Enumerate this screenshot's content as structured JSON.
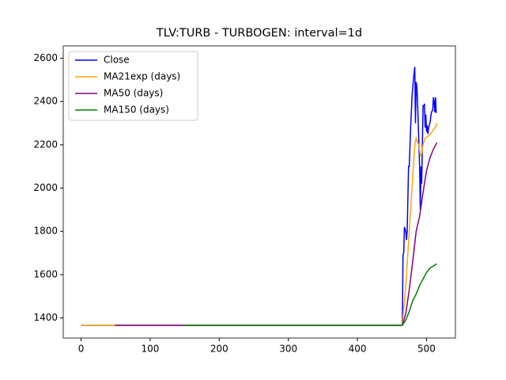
{
  "chart_data": {
    "type": "line",
    "title": "TLV:TURB - TURBOGEN: interval=1d",
    "xlim": [
      -25.8,
      541.8
    ],
    "ylim": [
      1307,
      2657
    ],
    "xticks": [
      0,
      100,
      200,
      300,
      400,
      500
    ],
    "yticks": [
      1400,
      1600,
      1800,
      2000,
      2200,
      2400,
      2600
    ],
    "grid": false,
    "legend": "upper-left",
    "series": [
      {
        "name": "Close",
        "color": "#0000ff",
        "x": [
          0,
          465,
          466,
          467,
          468,
          470,
          471,
          472,
          473,
          474,
          475,
          477,
          479,
          481,
          483,
          484,
          485,
          486,
          487,
          488,
          489,
          490,
          491,
          492,
          493,
          494,
          495,
          496,
          497,
          498,
          499,
          500,
          501,
          502,
          503,
          505,
          507,
          509,
          510,
          511,
          512,
          513,
          514,
          515
        ],
        "values": [
          1366,
          1366,
          1690,
          1700,
          1820,
          1800,
          1760,
          1800,
          1950,
          2100,
          2100,
          2280,
          2420,
          2500,
          2560,
          2300,
          2490,
          2470,
          2400,
          2300,
          2200,
          2100,
          1900,
          2100,
          2020,
          2200,
          2380,
          2380,
          2390,
          2280,
          2340,
          2260,
          2290,
          2250,
          2280,
          2300,
          2350,
          2360,
          2420,
          2400,
          2350,
          2420,
          2350,
          2350
        ]
      },
      {
        "name": "MA21exp (days)",
        "color": "#ffa500",
        "x": [
          0,
          465,
          470,
          475,
          480,
          483,
          485,
          487,
          489,
          491,
          493,
          495,
          498,
          502,
          506,
          510,
          513,
          515
        ],
        "values": [
          1366,
          1366,
          1550,
          1800,
          2050,
          2200,
          2230,
          2210,
          2200,
          2150,
          2160,
          2200,
          2230,
          2240,
          2250,
          2270,
          2280,
          2300
        ]
      },
      {
        "name": "MA50 (days)",
        "color": "#800080",
        "x": [
          49,
          465,
          470,
          475,
          480,
          485,
          490,
          495,
          500,
          505,
          510,
          515
        ],
        "values": [
          1366,
          1366,
          1420,
          1530,
          1660,
          1800,
          1870,
          1980,
          2080,
          2140,
          2180,
          2210
        ]
      },
      {
        "name": "MA150 (days)",
        "color": "#008000",
        "x": [
          149,
          465,
          470,
          475,
          480,
          485,
          490,
          495,
          500,
          505,
          515
        ],
        "values": [
          1366,
          1366,
          1390,
          1430,
          1480,
          1510,
          1550,
          1580,
          1610,
          1630,
          1650
        ]
      }
    ]
  }
}
